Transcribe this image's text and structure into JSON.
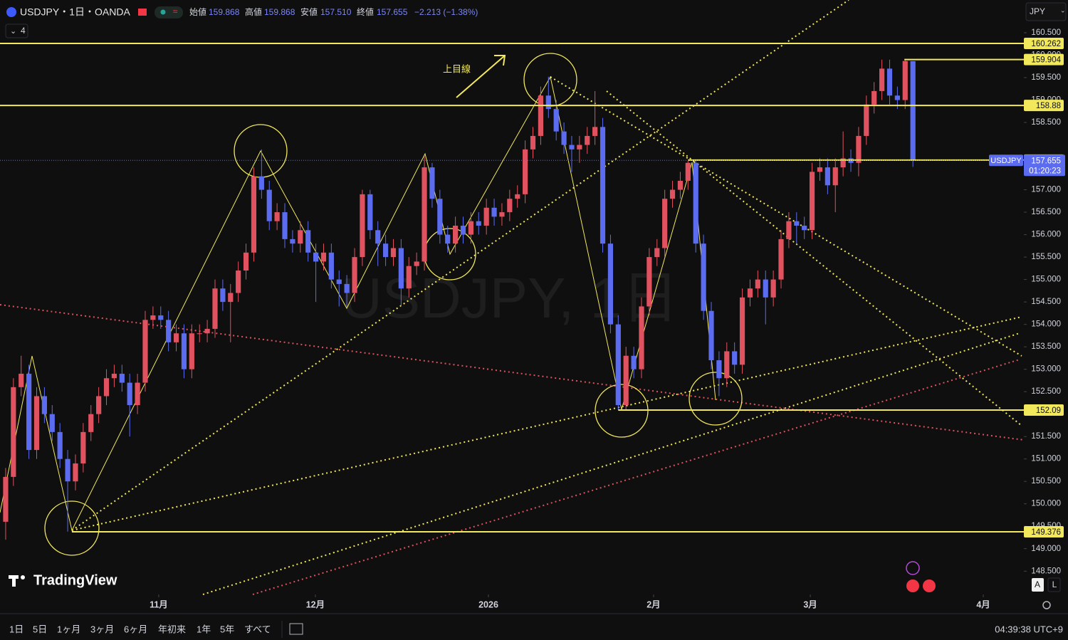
{
  "chart_data": {
    "type": "candlestick",
    "symbol_label": "USDJPY",
    "timer": "01:20:23",
    "annotation": "上目線",
    "up_color": "#e0525f",
    "down_color": "#5b6cf0",
    "level_color": "#f2e85c",
    "open": [
      149.6,
      150.6,
      152.6,
      152.9,
      151.2,
      152.4,
      152.0,
      151.6,
      151.0,
      150.5,
      150.9,
      151.6,
      152.0,
      152.4,
      152.8,
      152.9,
      152.7,
      152.2,
      152.7,
      154.1,
      154.2,
      154.1,
      153.6,
      153.8,
      153.0,
      153.8,
      153.8,
      153.9,
      154.8,
      154.5,
      154.7,
      155.2,
      155.6,
      157.3,
      157.0,
      156.3,
      156.5,
      155.9,
      155.8,
      156.1,
      155.6,
      155.4,
      155.6,
      155.0,
      154.9,
      154.7,
      155.5,
      156.9,
      156.1,
      155.8,
      155.5,
      155.7,
      154.8,
      155.3,
      155.4,
      157.5,
      156.8,
      156.0,
      155.8,
      156.2,
      156.0,
      156.3,
      156.2,
      156.6,
      156.4,
      156.5,
      156.8,
      156.9,
      157.9,
      158.2,
      159.1,
      158.8,
      158.3,
      158.0,
      157.9,
      158.0,
      158.2,
      158.4,
      155.8,
      154.0,
      152.2,
      153.3,
      153.0,
      154.4,
      155.5,
      155.7,
      156.8,
      157.0,
      157.2,
      157.6,
      155.8,
      154.3,
      153.2,
      152.8,
      153.4,
      153.1,
      154.6,
      154.8,
      155.0,
      154.6,
      155.0,
      155.9,
      156.3,
      156.2,
      156.1,
      157.4,
      157.5,
      157.1,
      157.5,
      157.7,
      157.6,
      158.2,
      158.9,
      159.2,
      159.7,
      159.1,
      159.0,
      159.868
    ],
    "high": [
      150.8,
      152.8,
      153.3,
      153.1,
      152.6,
      152.6,
      152.2,
      151.8,
      151.2,
      151.1,
      151.8,
      152.2,
      152.6,
      153.0,
      153.1,
      153.1,
      152.9,
      152.9,
      154.3,
      154.4,
      154.4,
      154.3,
      154.0,
      154.0,
      154.0,
      154.0,
      154.1,
      155.0,
      155.0,
      154.9,
      155.4,
      155.8,
      157.5,
      157.9,
      157.2,
      156.7,
      156.7,
      156.1,
      156.3,
      156.3,
      155.8,
      155.8,
      155.8,
      155.2,
      155.1,
      155.7,
      157.0,
      157.0,
      156.3,
      156.0,
      155.9,
      155.9,
      155.5,
      155.6,
      157.75,
      157.6,
      157.0,
      156.2,
      156.4,
      156.4,
      156.5,
      156.5,
      156.8,
      156.8,
      156.7,
      157.0,
      157.1,
      158.1,
      158.4,
      159.3,
      159.52,
      159.0,
      158.5,
      158.2,
      158.2,
      158.4,
      159.2,
      158.6,
      156.0,
      154.2,
      153.5,
      153.5,
      154.6,
      155.7,
      155.9,
      157.0,
      157.2,
      157.4,
      157.65,
      157.65,
      156.0,
      154.5,
      153.4,
      153.6,
      153.6,
      154.8,
      155.0,
      155.2,
      155.2,
      155.2,
      156.1,
      156.5,
      156.5,
      156.4,
      157.6,
      157.7,
      157.7,
      157.7,
      158.3,
      157.9,
      158.4,
      159.1,
      159.4,
      159.9,
      159.9,
      159.3,
      159.9,
      159.868
    ],
    "low": [
      149.2,
      150.4,
      152.4,
      151.0,
      151.0,
      151.8,
      151.4,
      150.8,
      149.38,
      150.3,
      150.7,
      151.4,
      151.8,
      152.2,
      152.6,
      152.5,
      151.5,
      152.0,
      152.5,
      153.9,
      153.9,
      153.4,
      153.4,
      152.8,
      152.8,
      153.6,
      153.6,
      153.7,
      154.3,
      153.6,
      154.5,
      155.0,
      155.4,
      156.8,
      156.1,
      156.1,
      155.7,
      155.6,
      155.6,
      155.4,
      154.5,
      155.2,
      154.8,
      154.4,
      154.4,
      154.5,
      155.3,
      155.9,
      155.3,
      155.3,
      155.3,
      154.4,
      154.6,
      155.1,
      155.2,
      156.6,
      155.8,
      155.6,
      155.6,
      155.8,
      155.8,
      156.0,
      156.0,
      156.2,
      156.2,
      156.3,
      156.6,
      156.7,
      157.7,
      158.0,
      158.6,
      158.1,
      157.8,
      157.4,
      157.6,
      157.8,
      158.0,
      155.6,
      153.8,
      152.09,
      152.1,
      152.8,
      152.8,
      154.2,
      155.3,
      155.5,
      156.6,
      156.8,
      157.0,
      155.6,
      154.1,
      153.0,
      152.4,
      152.6,
      152.9,
      152.9,
      154.4,
      154.6,
      154.0,
      154.4,
      154.8,
      155.7,
      155.8,
      155.9,
      155.9,
      157.2,
      156.9,
      156.5,
      157.3,
      157.4,
      157.3,
      158.0,
      158.7,
      159.0,
      158.9,
      158.8,
      158.8,
      157.51
    ],
    "close": [
      150.6,
      152.6,
      152.9,
      151.2,
      152.4,
      152.0,
      151.6,
      151.0,
      150.5,
      150.9,
      151.6,
      152.0,
      152.4,
      152.8,
      152.9,
      152.7,
      152.2,
      152.7,
      154.1,
      154.2,
      154.1,
      153.6,
      153.8,
      153.0,
      153.8,
      153.8,
      153.9,
      154.8,
      154.5,
      154.7,
      155.2,
      155.6,
      157.3,
      157.0,
      156.3,
      156.5,
      155.9,
      155.8,
      156.1,
      155.6,
      155.4,
      155.6,
      155.0,
      154.9,
      154.7,
      155.5,
      156.9,
      156.1,
      155.8,
      155.5,
      155.7,
      154.8,
      155.3,
      155.4,
      157.5,
      156.8,
      156.0,
      155.8,
      156.2,
      156.0,
      156.3,
      156.2,
      156.6,
      156.4,
      156.5,
      156.8,
      156.9,
      157.9,
      158.2,
      159.1,
      158.8,
      158.3,
      158.0,
      157.9,
      158.0,
      158.2,
      158.4,
      155.8,
      154.0,
      152.2,
      153.3,
      153.0,
      154.4,
      155.5,
      155.7,
      156.8,
      157.0,
      157.2,
      157.6,
      155.8,
      154.3,
      153.2,
      152.8,
      153.4,
      153.1,
      154.6,
      154.8,
      155.0,
      154.6,
      155.0,
      155.9,
      156.3,
      156.2,
      156.1,
      157.4,
      157.5,
      157.1,
      157.5,
      157.7,
      157.6,
      158.2,
      158.9,
      159.2,
      159.7,
      159.1,
      159.0,
      159.87,
      157.655
    ],
    "xlim": [
      -0.73,
      131.31
    ],
    "xticks": [
      {
        "value": 19.74,
        "label": "11月"
      },
      {
        "value": 39.94,
        "label": "12月"
      },
      {
        "value": 62.26,
        "label": "2026"
      },
      {
        "value": 83.56,
        "label": "2月"
      },
      {
        "value": 103.77,
        "label": "3月"
      },
      {
        "value": 126.08,
        "label": "4月"
      }
    ],
    "ylim": [
      147.98,
      161.23
    ],
    "yticks": [
      {
        "value": 148.5,
        "label": "148.500"
      },
      {
        "value": 149,
        "label": "149.000"
      },
      {
        "value": 149.5,
        "label": "149.500"
      },
      {
        "value": 150,
        "label": "150.000"
      },
      {
        "value": 150.5,
        "label": "150.500"
      },
      {
        "value": 151,
        "label": "151.000"
      },
      {
        "value": 151.5,
        "label": "151.500"
      },
      {
        "value": 152.5,
        "label": "152.500"
      },
      {
        "value": 153,
        "label": "153.000"
      },
      {
        "value": 153.5,
        "label": "153.500"
      },
      {
        "value": 154,
        "label": "154.000"
      },
      {
        "value": 154.5,
        "label": "154.500"
      },
      {
        "value": 155,
        "label": "155.000"
      },
      {
        "value": 155.5,
        "label": "155.500"
      },
      {
        "value": 156,
        "label": "156.000"
      },
      {
        "value": 156.5,
        "label": "156.500"
      },
      {
        "value": 157,
        "label": "157.000"
      },
      {
        "value": 158.5,
        "label": "158.500"
      },
      {
        "value": 159,
        "label": "159.000"
      },
      {
        "value": 159.5,
        "label": "159.500"
      },
      {
        "value": 160,
        "label": "160.000"
      },
      {
        "value": 160.5,
        "label": "160.500"
      }
    ],
    "grid": false,
    "levels": [
      {
        "value": 160.262
      },
      {
        "value": 159.904,
        "from": 115.9
      },
      {
        "value": 158.88
      },
      {
        "value": 157.662,
        "from": 88
      },
      {
        "value": 152.09,
        "from": 79
      },
      {
        "value": 149.376,
        "from": 8.54
      }
    ]
  },
  "ui": {
    "title": "USDJPY・1日・OANDA",
    "indicator_count": "4",
    "currency": "JPY",
    "ohlc": [
      {
        "label": "始値",
        "value": "159.868"
      },
      {
        "label": "高値",
        "value": "159.868"
      },
      {
        "label": "安値",
        "value": "157.510"
      },
      {
        "label": "終値",
        "value": "157.655"
      }
    ],
    "change": "−2.213 (−1.38%)",
    "watermark": "USDJPY, 1日",
    "logo": "TradingView",
    "ranges": [
      "1日",
      "5日",
      "1ヶ月",
      "3ヶ月",
      "6ヶ月",
      "年初来",
      "1年",
      "5年",
      "すべて"
    ],
    "clock": "04:39:38 UTC+9",
    "scale_buttons": [
      "A",
      "L"
    ]
  }
}
